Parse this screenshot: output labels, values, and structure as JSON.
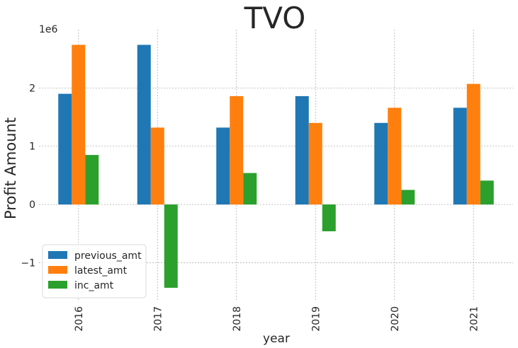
{
  "chart_data": {
    "type": "bar",
    "title": "TVO",
    "xlabel": "year",
    "ylabel": "Profit Amount",
    "offset_text": "1e6",
    "categories": [
      "2016",
      "2017",
      "2018",
      "2019",
      "2020",
      "2021"
    ],
    "series": [
      {
        "name": "previous_amt",
        "color": "#1f77b4",
        "values": [
          1900000,
          2740000,
          1320000,
          1860000,
          1400000,
          1660000
        ]
      },
      {
        "name": "latest_amt",
        "color": "#ff7f0e",
        "values": [
          2740000,
          1320000,
          1860000,
          1400000,
          1660000,
          2070000
        ]
      },
      {
        "name": "inc_amt",
        "color": "#2ca02c",
        "values": [
          850000,
          -1430000,
          540000,
          -460000,
          250000,
          410000
        ]
      }
    ],
    "ylim": [
      -1650000,
      3000000
    ],
    "yticks": [
      {
        "value": -1000000,
        "label": "−1"
      },
      {
        "value": 0,
        "label": "0"
      },
      {
        "value": 1000000,
        "label": "1"
      },
      {
        "value": 2000000,
        "label": "2"
      }
    ],
    "grid": true,
    "legend_position": "lower-left"
  }
}
